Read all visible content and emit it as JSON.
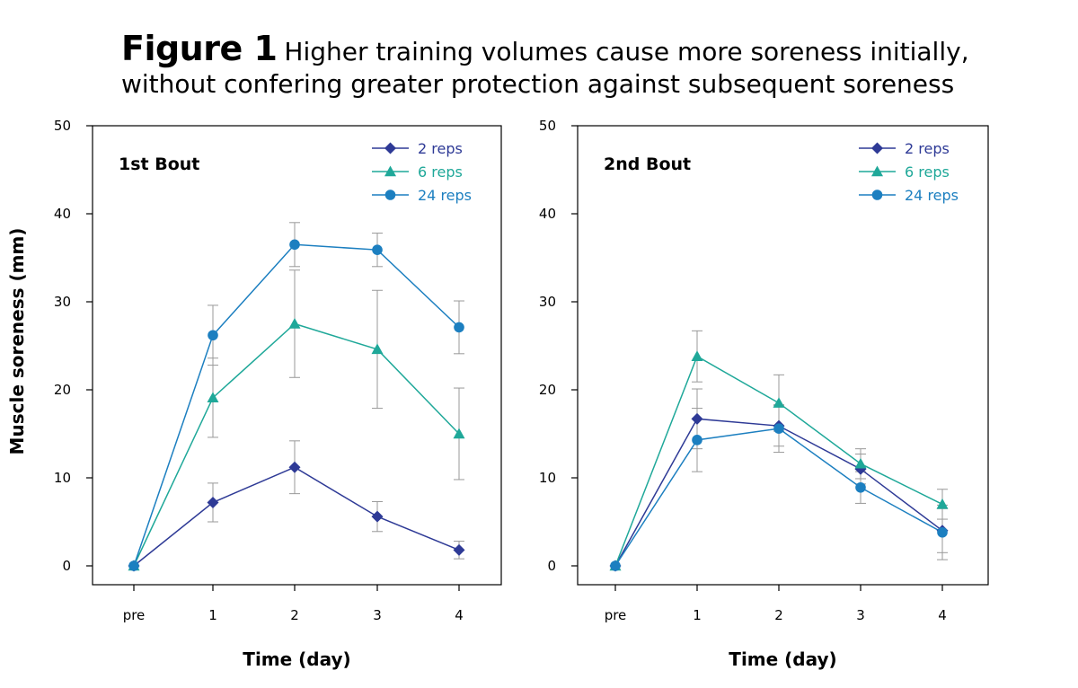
{
  "figure": {
    "label": "Figure 1",
    "title_line1": "Higher training volumes cause more soreness initially,",
    "title_line2": "without confering greater protection against subsequent soreness"
  },
  "colors": {
    "2 reps": "#2e3a96",
    "6 reps": "#1fa899",
    "24 reps": "#1c7fc0",
    "error_bar": "#999999",
    "axis": "#000000"
  },
  "chart_data": [
    {
      "type": "line",
      "panel_label": "1st Bout",
      "categories": [
        "pre",
        "1",
        "2",
        "3",
        "4"
      ],
      "xlabel": "Time (day)",
      "ylabel": "Muscle soreness (mm)",
      "ylim": [
        0,
        50
      ],
      "yticks": [
        "0",
        "10",
        "20",
        "30",
        "40",
        "50"
      ],
      "legend_position": "top-right",
      "series": [
        {
          "name": "2 reps",
          "marker": "diamond",
          "values": [
            0,
            7.2,
            11.2,
            5.6,
            1.8
          ],
          "errors": [
            0,
            2.2,
            3.0,
            1.7,
            1.0
          ]
        },
        {
          "name": "6 reps",
          "marker": "triangle",
          "values": [
            0,
            19.1,
            27.5,
            24.6,
            15.0
          ],
          "errors": [
            0,
            4.5,
            6.1,
            6.7,
            5.2
          ]
        },
        {
          "name": "24 reps",
          "marker": "circle",
          "values": [
            0,
            26.2,
            36.5,
            35.9,
            27.1
          ],
          "errors": [
            0,
            3.4,
            2.5,
            1.9,
            3.0
          ]
        }
      ]
    },
    {
      "type": "line",
      "panel_label": "2nd Bout",
      "categories": [
        "pre",
        "1",
        "2",
        "3",
        "4"
      ],
      "xlabel": "Time (day)",
      "ylabel": "",
      "ylim": [
        0,
        50
      ],
      "yticks": [
        "0",
        "10",
        "20",
        "30",
        "40",
        "50"
      ],
      "legend_position": "top-right",
      "series": [
        {
          "name": "2 reps",
          "marker": "diamond",
          "values": [
            0,
            16.7,
            15.9,
            11.0,
            4.0
          ],
          "errors": [
            0,
            3.4,
            2.3,
            1.7,
            2.5
          ]
        },
        {
          "name": "6 reps",
          "marker": "triangle",
          "values": [
            0,
            23.8,
            18.5,
            11.6,
            7.0
          ],
          "errors": [
            0,
            2.9,
            3.2,
            1.7,
            1.7
          ]
        },
        {
          "name": "24 reps",
          "marker": "circle",
          "values": [
            0,
            14.3,
            15.6,
            8.9,
            3.8
          ],
          "errors": [
            0,
            3.6,
            2.7,
            1.8,
            3.1
          ]
        }
      ]
    }
  ]
}
